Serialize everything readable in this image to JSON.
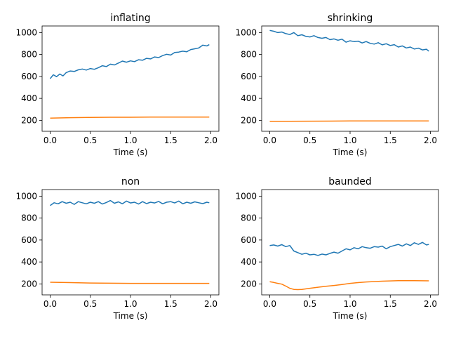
{
  "colors": {
    "series_1": "#1f77b4",
    "series_2": "#ff7f0e"
  },
  "chart_data": [
    {
      "type": "line",
      "title": "inflating",
      "xlabel": "Time (s)",
      "ylabel": "",
      "xlim": [
        -0.1,
        2.1
      ],
      "ylim": [
        100,
        1060
      ],
      "xticks": [
        "0.0",
        "0.5",
        "1.0",
        "1.5",
        "2.0"
      ],
      "yticks": [
        "200",
        "400",
        "600",
        "800",
        "1000"
      ],
      "grid": false,
      "series": [
        {
          "color": "series_1",
          "x": [
            0.0,
            0.04,
            0.08,
            0.12,
            0.16,
            0.2,
            0.25,
            0.3,
            0.35,
            0.4,
            0.45,
            0.5,
            0.55,
            0.6,
            0.65,
            0.7,
            0.75,
            0.8,
            0.85,
            0.9,
            0.95,
            1.0,
            1.05,
            1.1,
            1.15,
            1.2,
            1.25,
            1.3,
            1.35,
            1.4,
            1.45,
            1.5,
            1.55,
            1.6,
            1.65,
            1.7,
            1.75,
            1.8,
            1.85,
            1.9,
            1.95,
            1.98
          ],
          "y": [
            580,
            615,
            598,
            622,
            605,
            635,
            650,
            645,
            660,
            668,
            658,
            672,
            665,
            680,
            698,
            690,
            712,
            705,
            722,
            740,
            730,
            742,
            735,
            752,
            748,
            765,
            760,
            778,
            772,
            790,
            802,
            795,
            818,
            822,
            830,
            825,
            845,
            852,
            860,
            885,
            878,
            890
          ]
        },
        {
          "color": "series_2",
          "x": [
            0.0,
            0.25,
            0.5,
            0.75,
            1.0,
            1.25,
            1.5,
            1.75,
            1.98
          ],
          "y": [
            220,
            224,
            226,
            228,
            228,
            229,
            229,
            229,
            230
          ]
        }
      ]
    },
    {
      "type": "line",
      "title": "shrinking",
      "xlabel": "Time (s)",
      "ylabel": "",
      "xlim": [
        -0.1,
        2.1
      ],
      "ylim": [
        100,
        1060
      ],
      "xticks": [
        "0.0",
        "0.5",
        "1.0",
        "1.5",
        "2.0"
      ],
      "yticks": [
        "200",
        "400",
        "600",
        "800",
        "1000"
      ],
      "grid": false,
      "series": [
        {
          "color": "series_1",
          "x": [
            0.0,
            0.05,
            0.1,
            0.15,
            0.2,
            0.25,
            0.3,
            0.35,
            0.4,
            0.45,
            0.5,
            0.55,
            0.6,
            0.65,
            0.7,
            0.75,
            0.8,
            0.85,
            0.9,
            0.95,
            1.0,
            1.05,
            1.1,
            1.15,
            1.2,
            1.25,
            1.3,
            1.35,
            1.4,
            1.45,
            1.5,
            1.55,
            1.6,
            1.65,
            1.7,
            1.75,
            1.8,
            1.85,
            1.9,
            1.95,
            1.98
          ],
          "y": [
            1020,
            1012,
            1000,
            1005,
            990,
            982,
            1000,
            972,
            980,
            965,
            960,
            972,
            955,
            948,
            955,
            935,
            942,
            930,
            940,
            912,
            925,
            918,
            922,
            905,
            918,
            902,
            895,
            908,
            888,
            898,
            882,
            890,
            868,
            878,
            860,
            868,
            850,
            858,
            842,
            848,
            830
          ]
        },
        {
          "color": "series_2",
          "x": [
            0.0,
            0.25,
            0.5,
            0.75,
            1.0,
            1.25,
            1.5,
            1.75,
            1.98
          ],
          "y": [
            190,
            191,
            192,
            193,
            194,
            194,
            195,
            195,
            195
          ]
        }
      ]
    },
    {
      "type": "line",
      "title": "non",
      "xlabel": "Time (s)",
      "ylabel": "",
      "xlim": [
        -0.1,
        2.1
      ],
      "ylim": [
        100,
        1060
      ],
      "xticks": [
        "0.0",
        "0.5",
        "1.0",
        "1.5",
        "2.0"
      ],
      "yticks": [
        "200",
        "400",
        "600",
        "800",
        "1000"
      ],
      "grid": false,
      "series": [
        {
          "color": "series_1",
          "x": [
            0.0,
            0.05,
            0.1,
            0.15,
            0.2,
            0.25,
            0.3,
            0.35,
            0.4,
            0.45,
            0.5,
            0.55,
            0.6,
            0.65,
            0.7,
            0.75,
            0.8,
            0.85,
            0.9,
            0.95,
            1.0,
            1.05,
            1.1,
            1.15,
            1.2,
            1.25,
            1.3,
            1.35,
            1.4,
            1.45,
            1.5,
            1.55,
            1.6,
            1.65,
            1.7,
            1.75,
            1.8,
            1.85,
            1.9,
            1.95,
            1.98
          ],
          "y": [
            915,
            940,
            930,
            950,
            935,
            945,
            925,
            950,
            940,
            930,
            945,
            935,
            950,
            928,
            942,
            960,
            935,
            948,
            930,
            955,
            938,
            945,
            928,
            950,
            932,
            945,
            938,
            952,
            930,
            945,
            950,
            938,
            955,
            930,
            945,
            935,
            948,
            940,
            932,
            945,
            940
          ]
        },
        {
          "color": "series_2",
          "x": [
            0.0,
            0.25,
            0.5,
            0.75,
            1.0,
            1.25,
            1.5,
            1.75,
            1.98
          ],
          "y": [
            215,
            212,
            208,
            206,
            205,
            205,
            205,
            205,
            205
          ]
        }
      ]
    },
    {
      "type": "line",
      "title": "baunded",
      "xlabel": "Time (s)",
      "ylabel": "",
      "xlim": [
        -0.1,
        2.1
      ],
      "ylim": [
        100,
        1060
      ],
      "xticks": [
        "0.0",
        "0.5",
        "1.0",
        "1.5",
        "2.0"
      ],
      "yticks": [
        "200",
        "400",
        "600",
        "800",
        "1000"
      ],
      "grid": false,
      "series": [
        {
          "color": "series_1",
          "x": [
            0.0,
            0.05,
            0.1,
            0.15,
            0.2,
            0.25,
            0.3,
            0.35,
            0.4,
            0.45,
            0.5,
            0.55,
            0.6,
            0.65,
            0.7,
            0.75,
            0.8,
            0.85,
            0.9,
            0.95,
            1.0,
            1.05,
            1.1,
            1.15,
            1.2,
            1.25,
            1.3,
            1.35,
            1.4,
            1.45,
            1.5,
            1.55,
            1.6,
            1.65,
            1.7,
            1.75,
            1.8,
            1.85,
            1.9,
            1.95,
            1.98
          ],
          "y": [
            550,
            555,
            545,
            558,
            540,
            550,
            500,
            485,
            470,
            480,
            465,
            470,
            460,
            472,
            465,
            478,
            490,
            480,
            500,
            520,
            510,
            530,
            520,
            540,
            530,
            525,
            540,
            535,
            545,
            520,
            540,
            550,
            560,
            545,
            565,
            550,
            575,
            560,
            578,
            555,
            560
          ]
        },
        {
          "color": "series_2",
          "x": [
            0.0,
            0.05,
            0.1,
            0.15,
            0.2,
            0.25,
            0.3,
            0.35,
            0.4,
            0.5,
            0.6,
            0.7,
            0.8,
            0.9,
            1.0,
            1.1,
            1.2,
            1.4,
            1.6,
            1.8,
            1.98
          ],
          "y": [
            220,
            213,
            205,
            198,
            180,
            160,
            150,
            148,
            150,
            160,
            170,
            178,
            186,
            195,
            205,
            212,
            218,
            225,
            230,
            230,
            228
          ]
        }
      ]
    }
  ]
}
